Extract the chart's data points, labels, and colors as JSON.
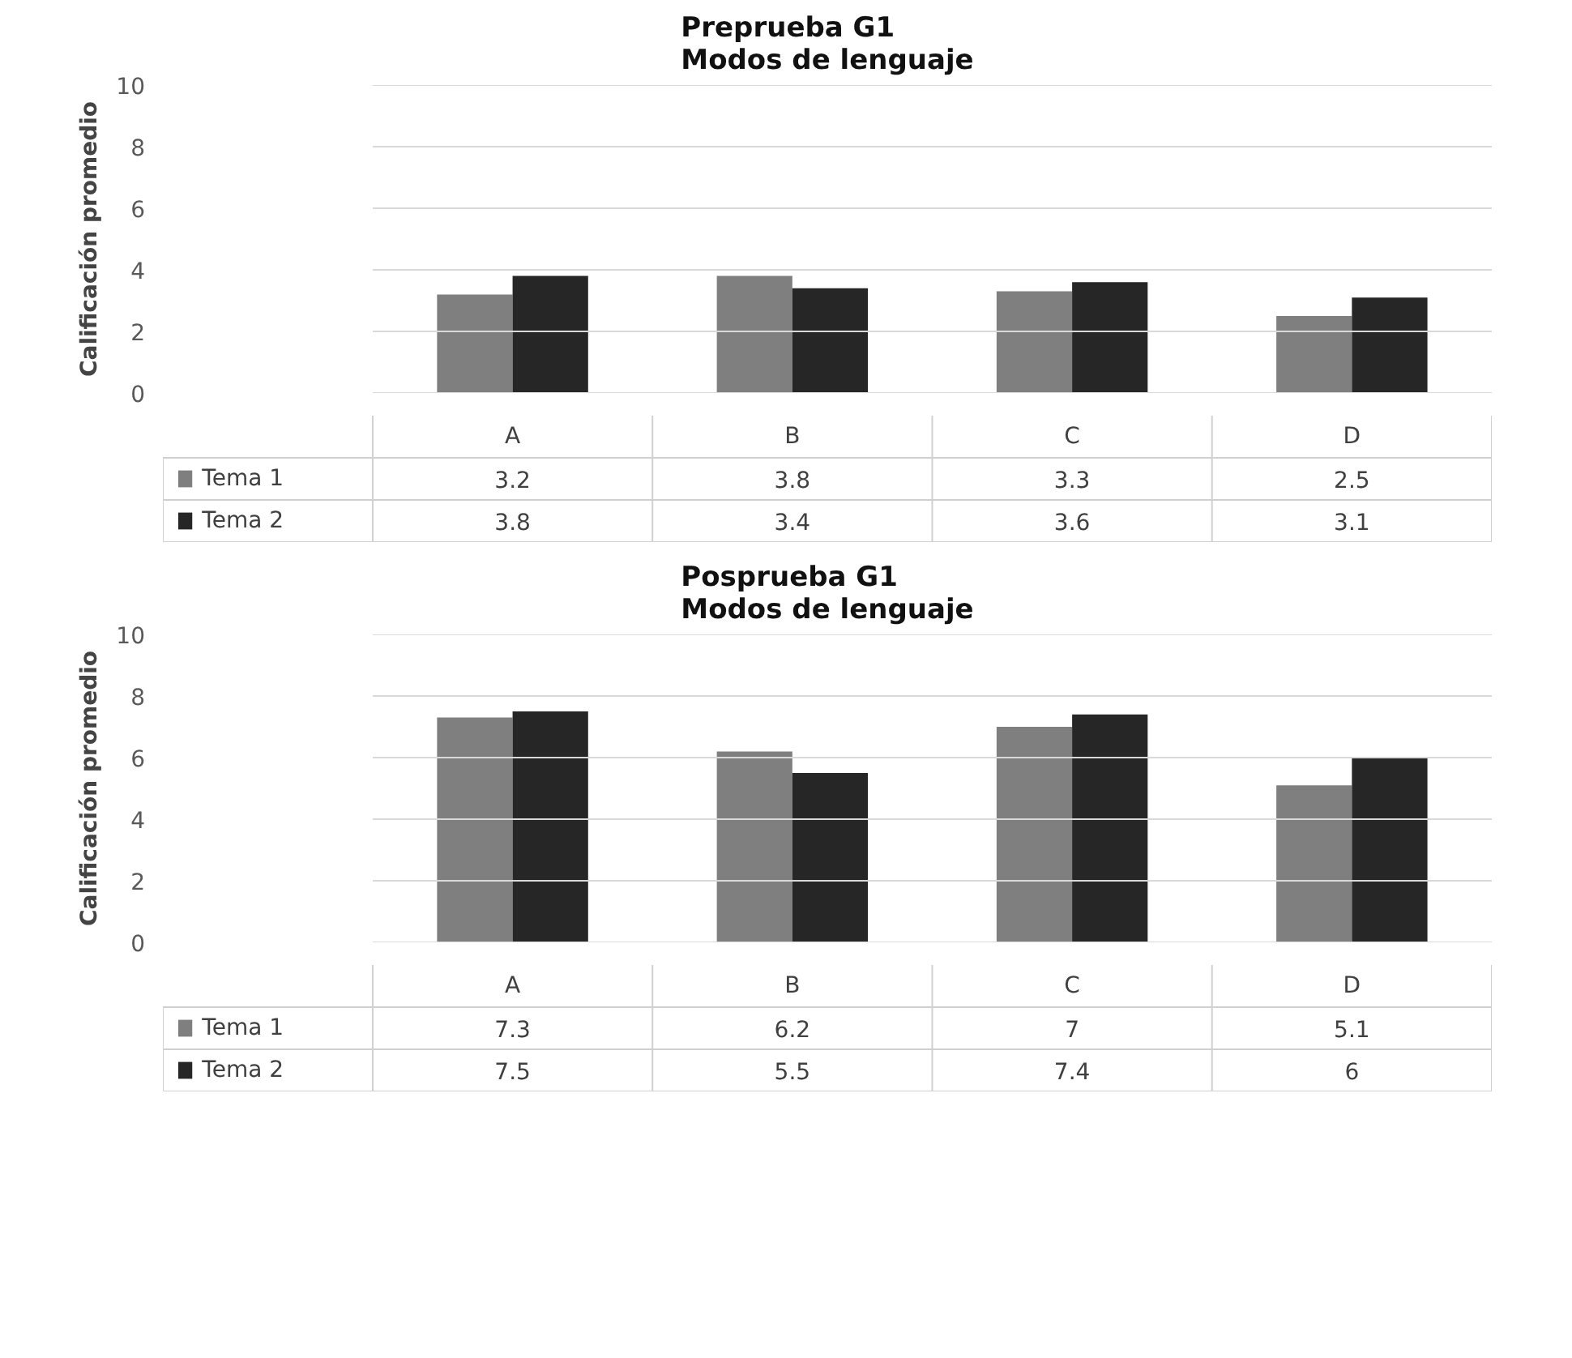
{
  "chart_data": [
    {
      "type": "bar",
      "title": "Preprueba G1",
      "subtitle": "Modos de lenguaje",
      "ylabel": "Calificación promedio",
      "categories": [
        "A",
        "B",
        "C",
        "D"
      ],
      "series": [
        {
          "name": "Tema 1",
          "color": "#7f7f7f",
          "values": [
            3.2,
            3.8,
            3.3,
            2.5
          ]
        },
        {
          "name": "Tema 2",
          "color": "#262626",
          "values": [
            3.8,
            3.4,
            3.6,
            3.1
          ]
        }
      ],
      "ylim": [
        0,
        10
      ],
      "yticks": [
        0,
        2,
        4,
        6,
        8,
        10
      ],
      "grid": "y",
      "legend": "bottom left",
      "data_labels": true
    },
    {
      "type": "bar",
      "title": "Posprueba G1",
      "subtitle": "Modos de lenguaje",
      "ylabel": "Calificación promedio",
      "categories": [
        "A",
        "B",
        "C",
        "D"
      ],
      "series": [
        {
          "name": "Tema 1",
          "color": "#7f7f7f",
          "values": [
            7.3,
            6.2,
            7,
            5.1
          ]
        },
        {
          "name": "Tema 2",
          "color": "#262626",
          "values": [
            7.5,
            5.5,
            7.4,
            6
          ]
        }
      ],
      "ylim": [
        0,
        10
      ],
      "yticks": [
        0,
        2,
        4,
        6,
        8,
        10
      ],
      "grid": "y",
      "legend": "bottom left",
      "data_labels": true
    }
  ]
}
